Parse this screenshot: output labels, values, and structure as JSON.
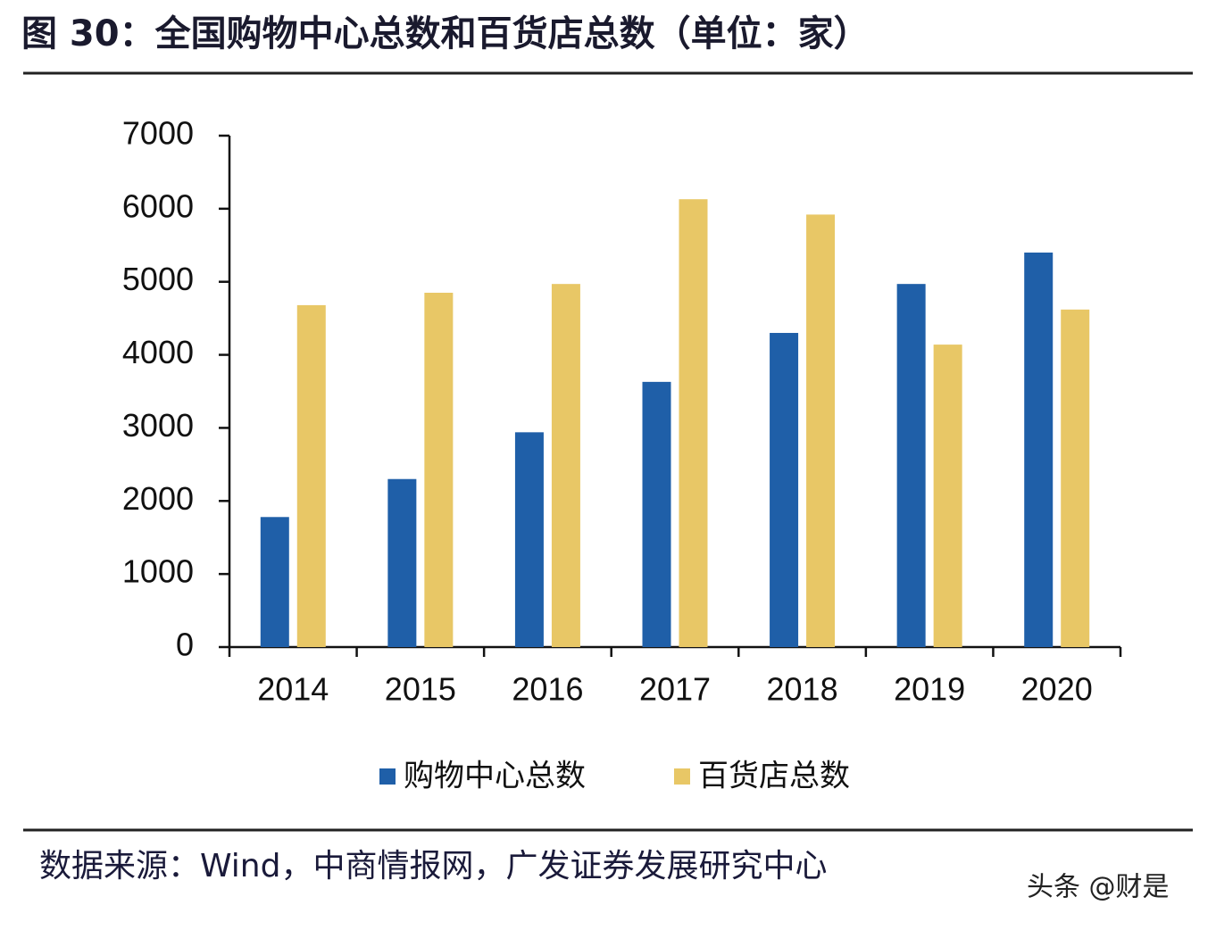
{
  "chart_data": {
    "type": "bar",
    "title": "图 30：全国购物中心总数和百货店总数（单位：家）",
    "categories": [
      "2014",
      "2015",
      "2016",
      "2017",
      "2018",
      "2019",
      "2020"
    ],
    "series": [
      {
        "name": "购物中心总数",
        "color": "#1f5fa8",
        "values": [
          1780,
          2300,
          2940,
          3630,
          4300,
          4970,
          5400
        ]
      },
      {
        "name": "百货店总数",
        "color": "#e8c766",
        "values": [
          4680,
          4850,
          4970,
          6130,
          5920,
          4140,
          4620
        ]
      }
    ],
    "ylim": [
      0,
      7000
    ],
    "yticks": [
      0,
      1000,
      2000,
      3000,
      4000,
      5000,
      6000,
      7000
    ],
    "source": "数据来源：Wind，中商情报网，广发证券发展研究中心",
    "watermark": "头条 @财是"
  }
}
